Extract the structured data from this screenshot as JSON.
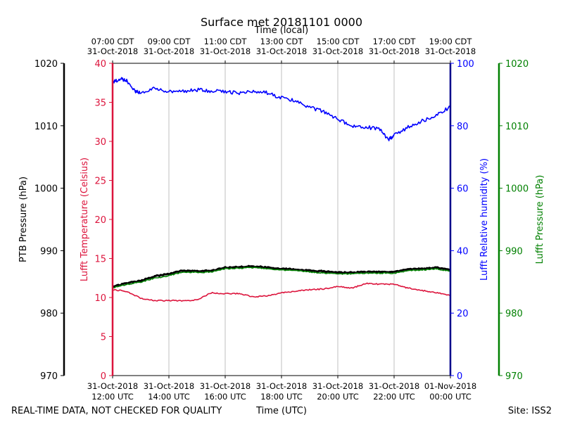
{
  "chart_data": {
    "type": "line",
    "title": "Surface met 20181101 0000",
    "top_axis_label": "Time (local)",
    "xlabel": "Time (UTC)",
    "footer_left": "REAL-TIME DATA, NOT CHECKED FOR QUALITY",
    "footer_right": "Site: ISS2",
    "x_range_hours": [
      12,
      24
    ],
    "x_ticks": [
      {
        "hour": 12,
        "date": "31-Oct-2018",
        "utc": "12:00 UTC",
        "local_time": "07:00 CDT",
        "local_date": "31-Oct-2018"
      },
      {
        "hour": 14,
        "date": "31-Oct-2018",
        "utc": "14:00 UTC",
        "local_time": "09:00 CDT",
        "local_date": "31-Oct-2018"
      },
      {
        "hour": 16,
        "date": "31-Oct-2018",
        "utc": "16:00 UTC",
        "local_time": "11:00 CDT",
        "local_date": "31-Oct-2018"
      },
      {
        "hour": 18,
        "date": "31-Oct-2018",
        "utc": "18:00 UTC",
        "local_time": "13:00 CDT",
        "local_date": "31-Oct-2018"
      },
      {
        "hour": 20,
        "date": "31-Oct-2018",
        "utc": "20:00 UTC",
        "local_time": "15:00 CDT",
        "local_date": "31-Oct-2018"
      },
      {
        "hour": 22,
        "date": "31-Oct-2018",
        "utc": "22:00 UTC",
        "local_time": "17:00 CDT",
        "local_date": "31-Oct-2018"
      },
      {
        "hour": 24,
        "date": "01-Nov-2018",
        "utc": "00:00 UTC",
        "local_time": "19:00 CDT",
        "local_date": "31-Oct-2018"
      }
    ],
    "grid": "vertical",
    "axes": {
      "ptb_pressure": {
        "label": "PTB Pressure (hPa)",
        "ylim": [
          970,
          1020
        ],
        "ticks": [
          970,
          980,
          990,
          1000,
          1010,
          1020
        ],
        "color": "#000000"
      },
      "temperature": {
        "label": "Lufft Temperature (Celsius)",
        "ylim": [
          0,
          40
        ],
        "ticks": [
          0,
          5,
          10,
          15,
          20,
          25,
          30,
          35,
          40
        ],
        "color": "#dc143c"
      },
      "humidity": {
        "label": "Lufft Relative humidity (%)",
        "ylim": [
          0,
          100
        ],
        "ticks": [
          0,
          20,
          40,
          60,
          80,
          100
        ],
        "color": "#0000ff"
      },
      "lufft_pressure": {
        "label": "Lufft Pressure (hPa)",
        "ylim": [
          970,
          1020
        ],
        "ticks": [
          970,
          980,
          990,
          1000,
          1010,
          1020
        ],
        "color": "#008000"
      }
    },
    "series": [
      {
        "name": "PTB Pressure",
        "axis": "ptb_pressure",
        "color": "#000000",
        "x": [
          12.0,
          12.5,
          13.0,
          13.5,
          14.0,
          14.5,
          15.0,
          15.5,
          16.0,
          16.5,
          17.0,
          17.5,
          18.0,
          18.5,
          19.0,
          19.5,
          20.0,
          20.5,
          21.0,
          21.5,
          22.0,
          22.5,
          23.0,
          23.5,
          24.0
        ],
        "values": [
          984.2,
          984.8,
          985.2,
          985.9,
          986.3,
          986.8,
          986.7,
          986.8,
          987.3,
          987.4,
          987.5,
          987.3,
          987.1,
          987.0,
          986.8,
          986.7,
          986.5,
          986.5,
          986.6,
          986.6,
          986.6,
          987.0,
          987.1,
          987.3,
          986.9
        ]
      },
      {
        "name": "Lufft Pressure",
        "axis": "lufft_pressure",
        "color": "#008000",
        "x": [
          12.0,
          12.5,
          13.0,
          13.5,
          14.0,
          14.5,
          15.0,
          15.5,
          16.0,
          16.5,
          17.0,
          17.5,
          18.0,
          18.5,
          19.0,
          19.5,
          20.0,
          20.5,
          21.0,
          21.5,
          22.0,
          22.5,
          23.0,
          23.5,
          24.0
        ],
        "values": [
          984.1,
          984.6,
          985.0,
          985.6,
          986.0,
          986.6,
          986.5,
          986.6,
          987.1,
          987.2,
          987.3,
          987.1,
          986.9,
          986.8,
          986.6,
          986.4,
          986.3,
          986.3,
          986.4,
          986.4,
          986.4,
          986.8,
          986.9,
          987.1,
          986.7
        ]
      },
      {
        "name": "Lufft Temperature",
        "axis": "temperature",
        "color": "#dc143c",
        "x": [
          12.0,
          12.5,
          13.0,
          13.5,
          14.0,
          14.5,
          15.0,
          15.5,
          16.0,
          16.5,
          17.0,
          17.5,
          18.0,
          18.5,
          19.0,
          19.5,
          20.0,
          20.5,
          21.0,
          21.5,
          22.0,
          22.5,
          23.0,
          23.5,
          24.0
        ],
        "values": [
          11.0,
          10.8,
          9.9,
          9.6,
          9.6,
          9.6,
          9.7,
          10.6,
          10.5,
          10.5,
          10.1,
          10.2,
          10.6,
          10.8,
          11.0,
          11.1,
          11.4,
          11.2,
          11.8,
          11.7,
          11.7,
          11.2,
          10.9,
          10.6,
          10.3
        ]
      },
      {
        "name": "Lufft Relative humidity",
        "axis": "humidity",
        "color": "#0000ff",
        "x": [
          12.0,
          12.3,
          12.5,
          12.8,
          13.0,
          13.5,
          14.0,
          14.5,
          15.0,
          15.5,
          16.0,
          16.5,
          17.0,
          17.5,
          18.0,
          18.5,
          19.0,
          19.5,
          20.0,
          20.5,
          21.0,
          21.5,
          21.8,
          22.0,
          22.5,
          23.0,
          23.5,
          24.0
        ],
        "values": [
          94,
          95,
          94.5,
          91,
          90.5,
          92,
          91,
          91,
          91.5,
          91,
          91,
          90.5,
          91,
          90.5,
          89,
          88,
          86,
          84.5,
          82,
          80,
          79.5,
          79,
          75.5,
          77,
          79.5,
          81.5,
          83.5,
          86
        ]
      }
    ]
  }
}
